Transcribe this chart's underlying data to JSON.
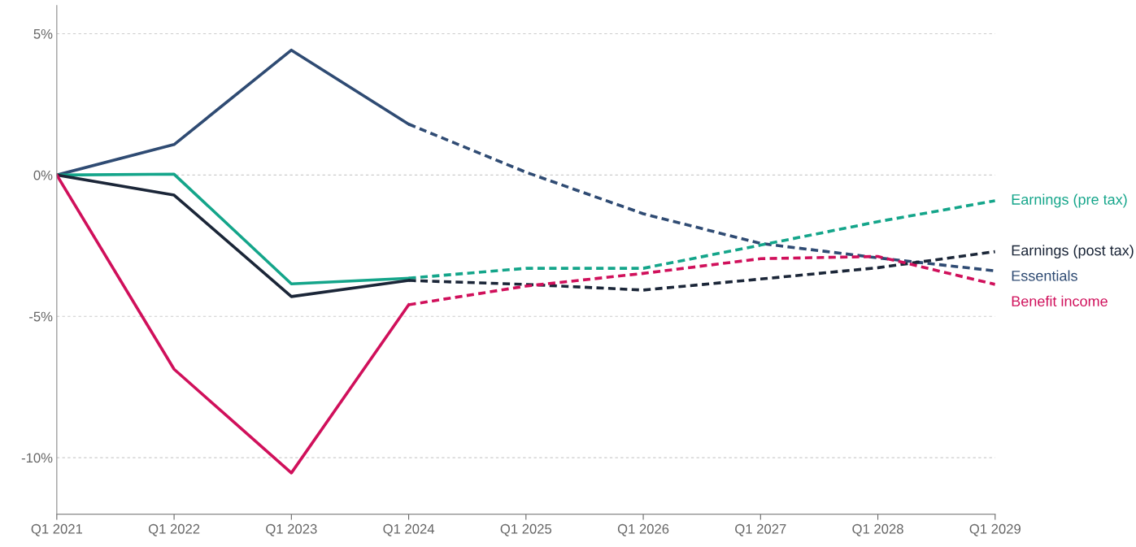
{
  "chart_data": {
    "type": "line",
    "categories": [
      "Q1 2021",
      "Q1 2022",
      "Q1 2023",
      "Q1 2024",
      "Q1 2025",
      "Q1 2026",
      "Q1 2027",
      "Q1 2028",
      "Q1 2029"
    ],
    "series": [
      {
        "color": "#2f4b73",
        "line_style": "solid",
        "values": [
          0,
          1.08,
          4.42,
          1.8,
          null,
          null,
          null,
          null,
          null
        ]
      },
      {
        "name": "Essentials",
        "color": "#2f4b73",
        "line_style": "dashed",
        "values": [
          null,
          null,
          null,
          1.8,
          0.1,
          -1.37,
          -2.42,
          -2.93,
          -3.39
        ]
      },
      {
        "color": "#14a58a",
        "line_style": "solid",
        "values": [
          0,
          0.03,
          -3.85,
          -3.65,
          null,
          null,
          null,
          null,
          null
        ]
      },
      {
        "name": "Earnings (pre tax)",
        "color": "#14a58a",
        "line_style": "dashed",
        "values": [
          null,
          null,
          null,
          -3.65,
          -3.3,
          -3.3,
          -2.48,
          -1.65,
          -0.91
        ]
      },
      {
        "color": "#1b2638",
        "line_style": "solid",
        "values": [
          0,
          -0.71,
          -4.3,
          -3.73,
          null,
          null,
          null,
          null,
          null
        ]
      },
      {
        "name": "Earnings (post tax)",
        "color": "#1b2638",
        "line_style": "dashed",
        "values": [
          null,
          null,
          null,
          -3.73,
          -3.87,
          -4.07,
          -3.68,
          -3.28,
          -2.71
        ]
      },
      {
        "color": "#d0105b",
        "line_style": "solid",
        "values": [
          0,
          -6.87,
          -10.54,
          -4.59,
          null,
          null,
          null,
          null,
          null
        ]
      },
      {
        "name": "Benefit income",
        "color": "#d0105b",
        "line_style": "dashed",
        "values": [
          null,
          null,
          null,
          -4.59,
          -3.93,
          -3.48,
          -2.96,
          -2.88,
          -3.87
        ]
      }
    ],
    "ylim": [
      -12,
      6
    ],
    "yticks": [
      {
        "value": -10,
        "label": "-10%"
      },
      {
        "value": -5,
        "label": "-5%"
      },
      {
        "value": 0,
        "label": "0%"
      },
      {
        "value": 5,
        "label": "5%"
      }
    ],
    "grid": "y",
    "legend": false
  }
}
